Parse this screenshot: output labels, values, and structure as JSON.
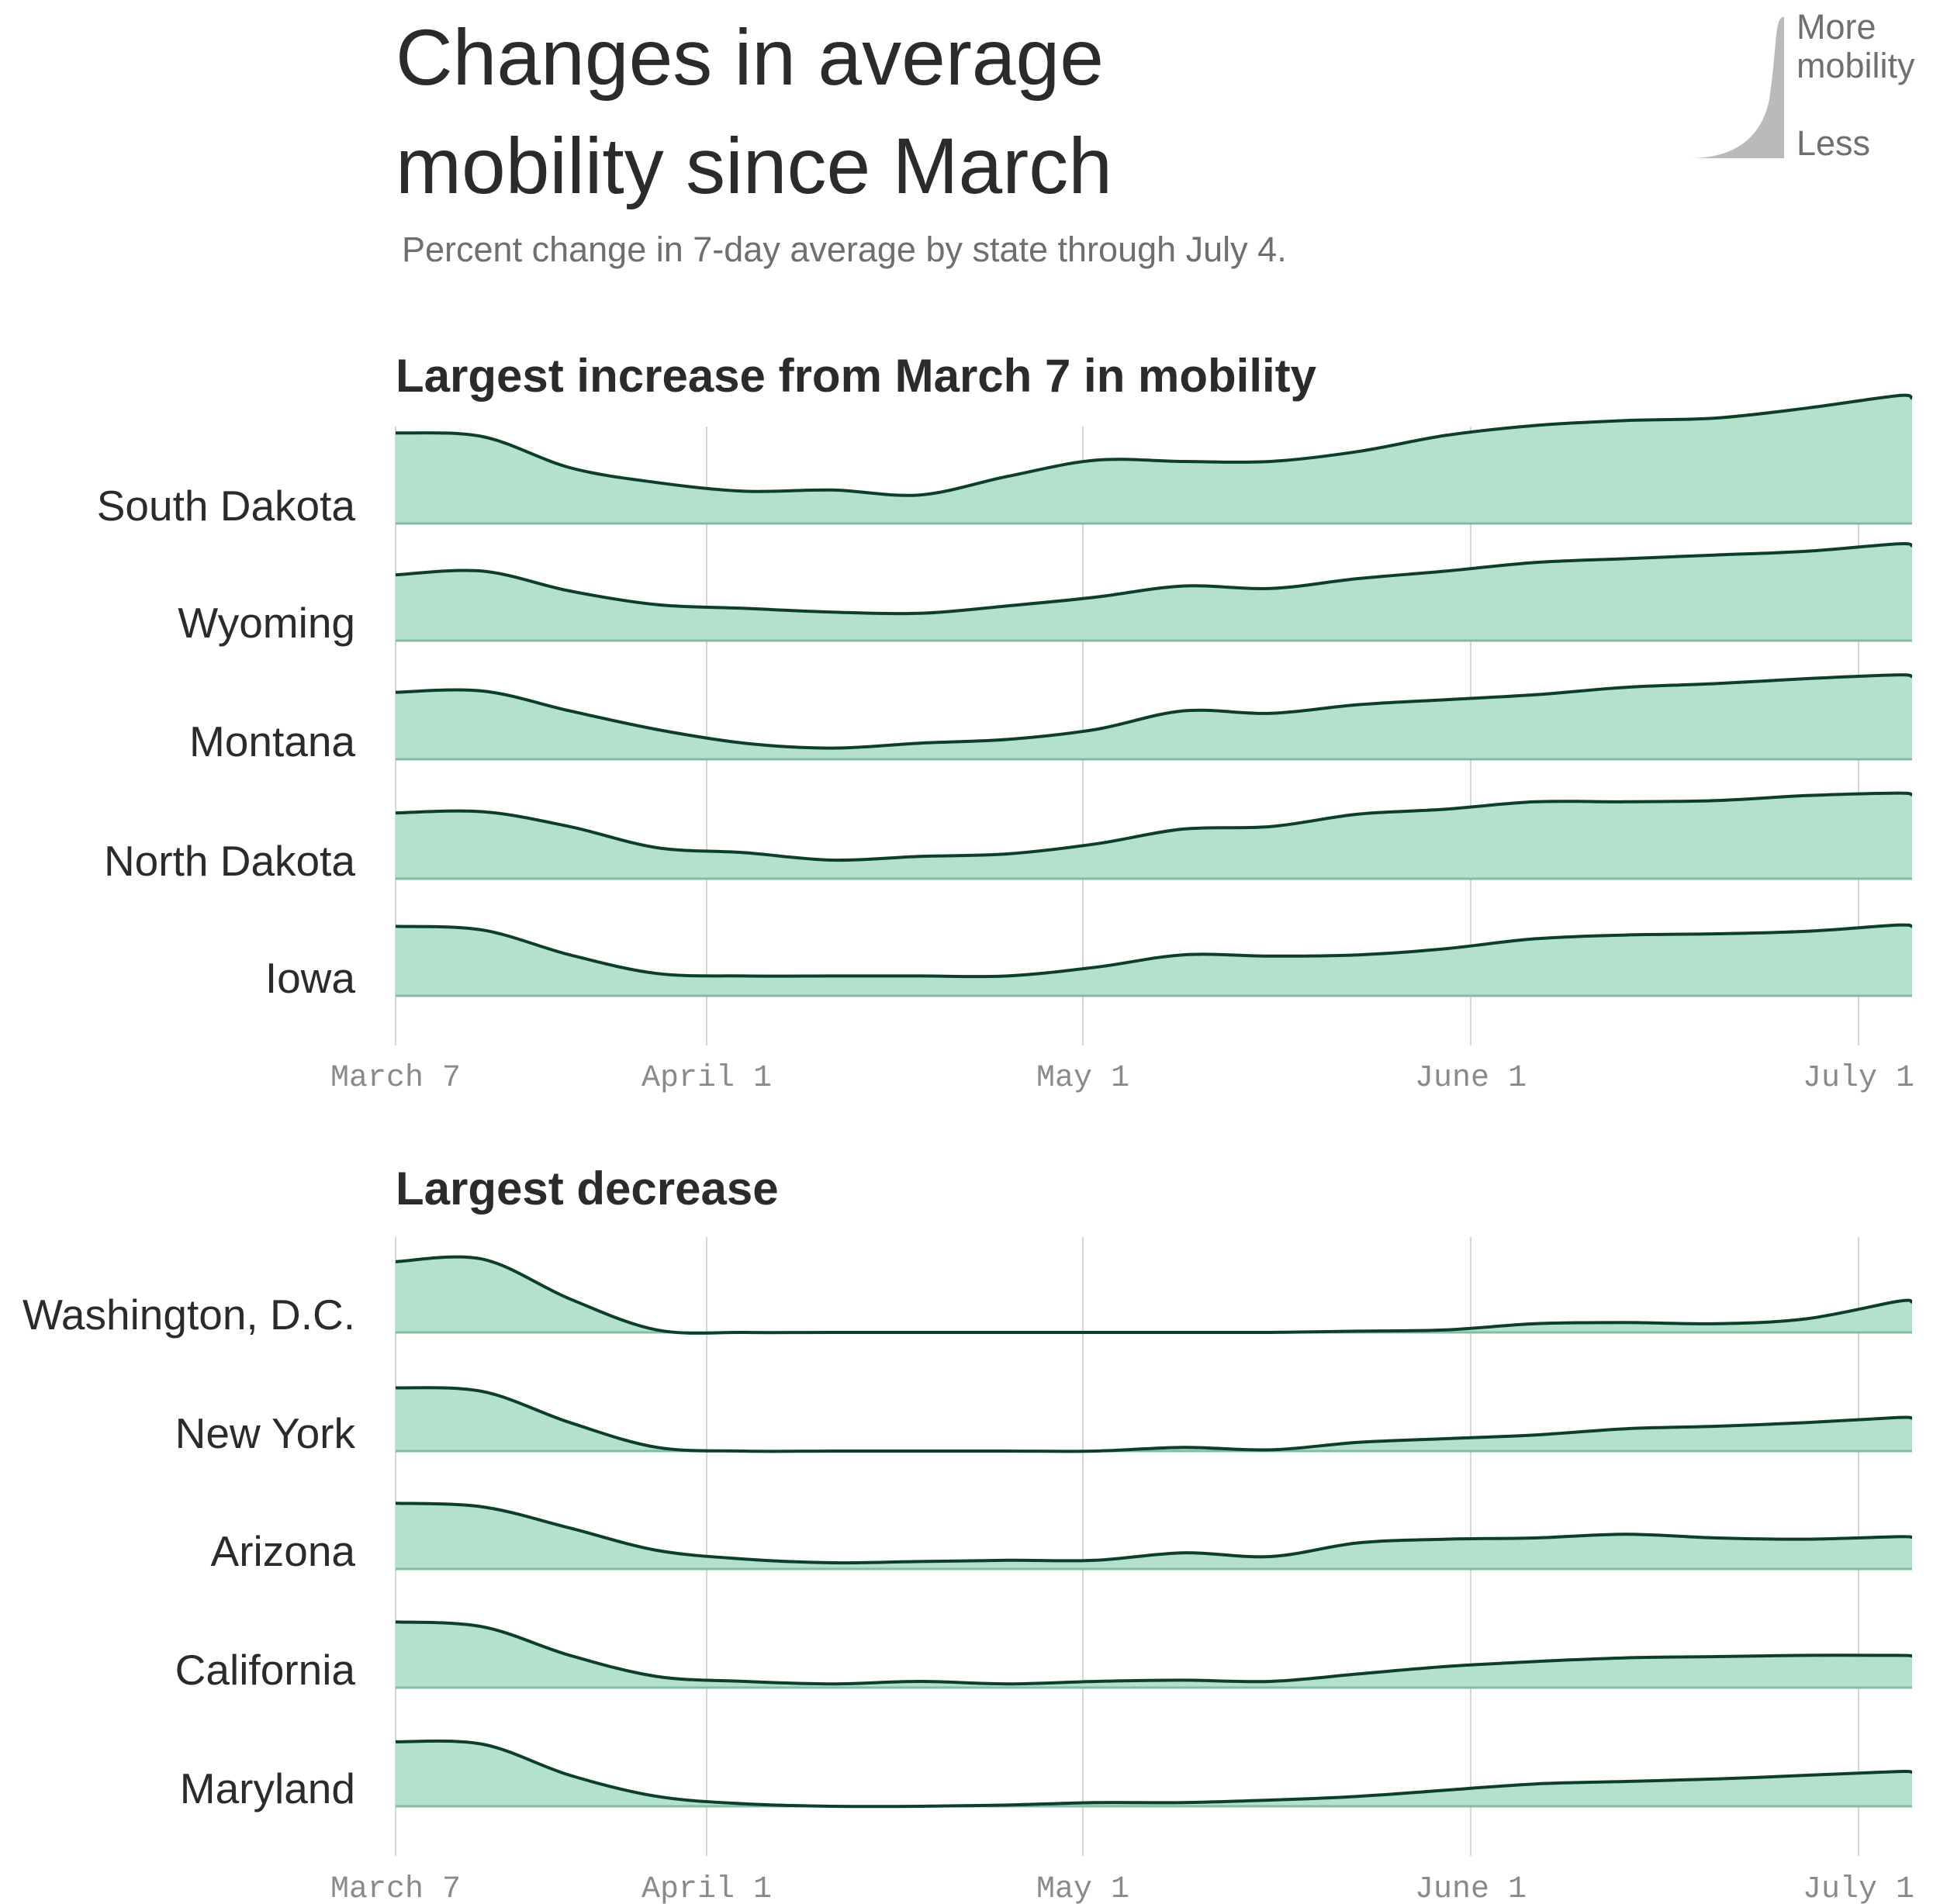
{
  "header": {
    "title_line1": "Changes in average",
    "title_line2": "mobility since March",
    "subtitle": "Percent change in 7-day average by state through July 4."
  },
  "legend": {
    "more_line1": "More",
    "more_line2": "mobility",
    "less": "Less",
    "shape_color": "#bababa"
  },
  "colors": {
    "fill": "#b3e1cb",
    "line": "#0b3f28",
    "baseline": "#86bba3",
    "grid": "#d6d6d6"
  },
  "chart_data": [
    {
      "type": "area",
      "title": "Largest increase from March 7 in mobility",
      "x": [
        "Mar 7",
        "Mar 14",
        "Mar 21",
        "Mar 28",
        "Apr 4",
        "Apr 11",
        "Apr 18",
        "Apr 25",
        "May 2",
        "May 9",
        "May 16",
        "May 23",
        "May 30",
        "Jun 6",
        "Jun 13",
        "Jun 20",
        "Jun 27",
        "Jul 4"
      ],
      "xticks": [
        "March 7",
        "April 1",
        "May 1",
        "June 1",
        "July 1"
      ],
      "series": [
        {
          "name": "South Dakota",
          "values": [
            73,
            70,
            45,
            33,
            26,
            27,
            23,
            38,
            51,
            50,
            50,
            58,
            71,
            79,
            83,
            85,
            93,
            103
          ]
        },
        {
          "name": "Wyoming",
          "values": [
            53,
            56,
            40,
            29,
            26,
            23,
            22,
            28,
            35,
            44,
            42,
            50,
            56,
            63,
            66,
            69,
            72,
            78
          ]
        },
        {
          "name": "Montana",
          "values": [
            54,
            55,
            39,
            24,
            13,
            9,
            13,
            16,
            24,
            39,
            37,
            44,
            48,
            52,
            58,
            61,
            65,
            68
          ]
        },
        {
          "name": "North Dakota",
          "values": [
            53,
            54,
            42,
            25,
            21,
            15,
            18,
            20,
            28,
            40,
            42,
            52,
            56,
            62,
            62,
            63,
            67,
            69
          ]
        },
        {
          "name": "Iowa",
          "values": [
            56,
            53,
            33,
            18,
            16,
            16,
            16,
            16,
            23,
            33,
            32,
            33,
            38,
            46,
            49,
            50,
            52,
            57
          ]
        }
      ]
    },
    {
      "type": "area",
      "title": "Largest decrease",
      "x": [
        "Mar 7",
        "Mar 14",
        "Mar 21",
        "Mar 28",
        "Apr 4",
        "Apr 11",
        "Apr 18",
        "Apr 25",
        "May 2",
        "May 9",
        "May 16",
        "May 23",
        "May 30",
        "Jun 6",
        "Jun 13",
        "Jun 20",
        "Jun 27",
        "Jul 4"
      ],
      "xticks": [
        "March 7",
        "April 1",
        "May 1",
        "June 1",
        "July 1"
      ],
      "series": [
        {
          "name": "Washington, D.C.",
          "values": [
            57,
            59,
            27,
            2,
            0,
            0,
            0,
            0,
            0,
            0,
            0,
            1,
            2,
            7,
            8,
            7,
            11,
            25
          ]
        },
        {
          "name": "New York",
          "values": [
            51,
            48,
            23,
            3,
            0,
            0,
            0,
            0,
            0,
            3,
            1,
            7,
            10,
            13,
            18,
            20,
            23,
            27
          ]
        },
        {
          "name": "Arizona",
          "values": [
            53,
            50,
            33,
            15,
            8,
            5,
            6,
            7,
            7,
            13,
            10,
            21,
            24,
            25,
            28,
            25,
            24,
            26
          ]
        },
        {
          "name": "California",
          "values": [
            53,
            49,
            26,
            9,
            5,
            3,
            5,
            3,
            5,
            6,
            5,
            11,
            17,
            21,
            24,
            25,
            26,
            26
          ]
        },
        {
          "name": "Maryland",
          "values": [
            52,
            50,
            25,
            8,
            2,
            0,
            0,
            1,
            3,
            3,
            5,
            8,
            13,
            18,
            20,
            22,
            25,
            28
          ]
        }
      ]
    }
  ]
}
